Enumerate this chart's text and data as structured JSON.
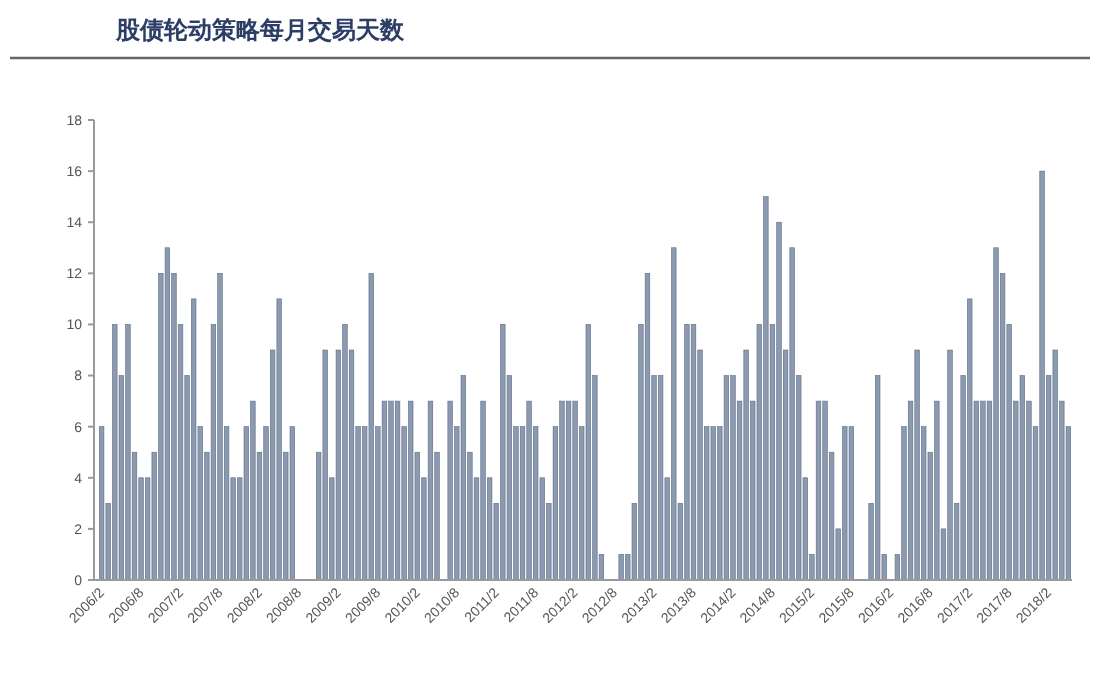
{
  "chart_data": {
    "type": "bar",
    "title": "股债轮动策略每月交易天数",
    "categories": [
      "2006/2",
      null,
      null,
      null,
      null,
      null,
      "2006/8",
      null,
      null,
      null,
      null,
      null,
      "2007/2",
      null,
      null,
      null,
      null,
      null,
      "2007/8",
      null,
      null,
      null,
      null,
      null,
      "2008/2",
      null,
      null,
      null,
      null,
      null,
      "2008/8",
      null,
      null,
      null,
      null,
      null,
      "2009/2",
      null,
      null,
      null,
      null,
      null,
      "2009/8",
      null,
      null,
      null,
      null,
      null,
      "2010/2",
      null,
      null,
      null,
      null,
      null,
      "2010/8",
      null,
      null,
      null,
      null,
      null,
      "2011/2",
      null,
      null,
      null,
      null,
      null,
      "2011/8",
      null,
      null,
      null,
      null,
      null,
      "2012/2",
      null,
      null,
      null,
      null,
      null,
      "2012/8",
      null,
      null,
      null,
      null,
      null,
      "2013/2",
      null,
      null,
      null,
      null,
      null,
      "2013/8",
      null,
      null,
      null,
      null,
      null,
      "2014/2",
      null,
      null,
      null,
      null,
      null,
      "2014/8",
      null,
      null,
      null,
      null,
      null,
      "2015/2",
      null,
      null,
      null,
      null,
      null,
      "2015/8",
      null,
      null,
      null,
      null,
      null,
      "2016/2",
      null,
      null,
      null,
      null,
      null,
      "2016/8",
      null,
      null,
      null,
      null,
      null,
      "2017/2",
      null,
      null,
      null,
      null,
      null,
      "2017/8",
      null,
      null,
      null,
      null,
      null,
      "2018/2",
      null,
      null,
      null
    ],
    "values": [
      6,
      3,
      10,
      8,
      10,
      5,
      4,
      4,
      5,
      12,
      13,
      12,
      10,
      8,
      11,
      6,
      5,
      10,
      12,
      6,
      4,
      4,
      6,
      7,
      5,
      6,
      9,
      11,
      5,
      6,
      0,
      0,
      0,
      5,
      9,
      4,
      9,
      10,
      9,
      6,
      6,
      12,
      6,
      7,
      7,
      7,
      6,
      7,
      5,
      4,
      7,
      5,
      0,
      7,
      6,
      8,
      5,
      4,
      7,
      4,
      3,
      10,
      8,
      6,
      6,
      7,
      6,
      4,
      3,
      6,
      7,
      7,
      7,
      6,
      10,
      8,
      1,
      0,
      0,
      1,
      1,
      3,
      10,
      12,
      8,
      8,
      4,
      13,
      3,
      10,
      10,
      9,
      6,
      6,
      6,
      8,
      8,
      7,
      9,
      7,
      10,
      15,
      10,
      14,
      9,
      13,
      8,
      4,
      1,
      7,
      7,
      5,
      2,
      6,
      6,
      0,
      0,
      3,
      8,
      1,
      0,
      1,
      6,
      7,
      9,
      6,
      5,
      7,
      2,
      9,
      3,
      8,
      11,
      7,
      7,
      7,
      13,
      12,
      10,
      7,
      8,
      7,
      6,
      16,
      8,
      9,
      7,
      6
    ],
    "color": "#8b9ab0",
    "ylim": [
      0,
      18
    ],
    "yticks": [
      0,
      2,
      4,
      6,
      8,
      10,
      12,
      14,
      16,
      18
    ],
    "grid": false
  }
}
